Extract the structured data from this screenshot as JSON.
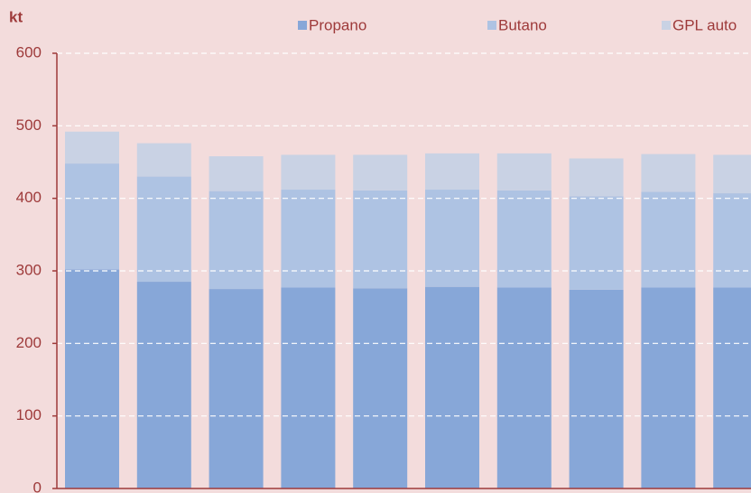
{
  "chart_data": {
    "type": "stacked_bar",
    "y_label": "kt",
    "categories": [
      null,
      null,
      null,
      null,
      null,
      null,
      null,
      null,
      null,
      null
    ],
    "series": [
      {
        "name": "Propano",
        "color": "#87a7d8",
        "values": [
          302,
          285,
          275,
          277,
          276,
          278,
          277,
          274,
          277,
          277
        ]
      },
      {
        "name": "Butano",
        "color": "#aec3e3",
        "values": [
          146,
          145,
          135,
          135,
          135,
          134,
          134,
          129,
          132,
          130
        ]
      },
      {
        "name": "GPL auto",
        "color": "#c9d2e4",
        "values": [
          44,
          46,
          48,
          48,
          49,
          50,
          51,
          52,
          52,
          53
        ]
      }
    ],
    "ylim": [
      0,
      600
    ],
    "yticks": [
      0,
      100,
      200,
      300,
      400,
      500,
      600
    ],
    "grid": true,
    "legend": "top"
  }
}
